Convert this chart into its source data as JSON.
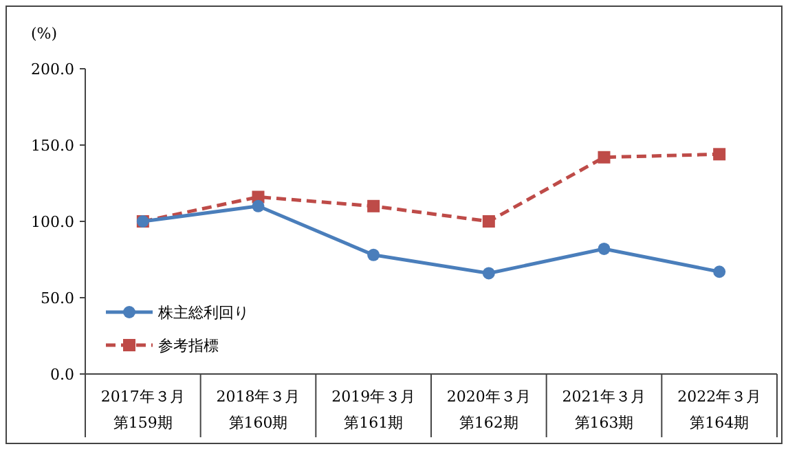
{
  "chart_data": {
    "type": "line",
    "ylabel": "(%)",
    "categories": [
      "2017年３月第159期",
      "2018年３月第160期",
      "2019年３月第161期",
      "2020年３月第162期",
      "2021年３月第163期",
      "2022年３月第164期"
    ],
    "series": [
      {
        "name": "株主総利回り",
        "color": "#4a7ebb",
        "values": [
          100,
          110,
          78,
          66,
          82,
          67
        ],
        "marker": "circle",
        "line_style": "solid"
      },
      {
        "name": "参考指標",
        "color": "#be4b48",
        "values": [
          100,
          116,
          110,
          100,
          142,
          144
        ],
        "marker": "square",
        "line_style": "dashed"
      }
    ],
    "ylim": [
      0,
      200
    ],
    "yticks": [
      {
        "value": 0,
        "label": "0.0"
      },
      {
        "value": 50,
        "label": "50.0"
      },
      {
        "value": 100,
        "label": "100.0"
      },
      {
        "value": 150,
        "label": "150.0"
      },
      {
        "value": 200,
        "label": "200.0"
      }
    ],
    "legend": "bottom left",
    "grid": false
  }
}
